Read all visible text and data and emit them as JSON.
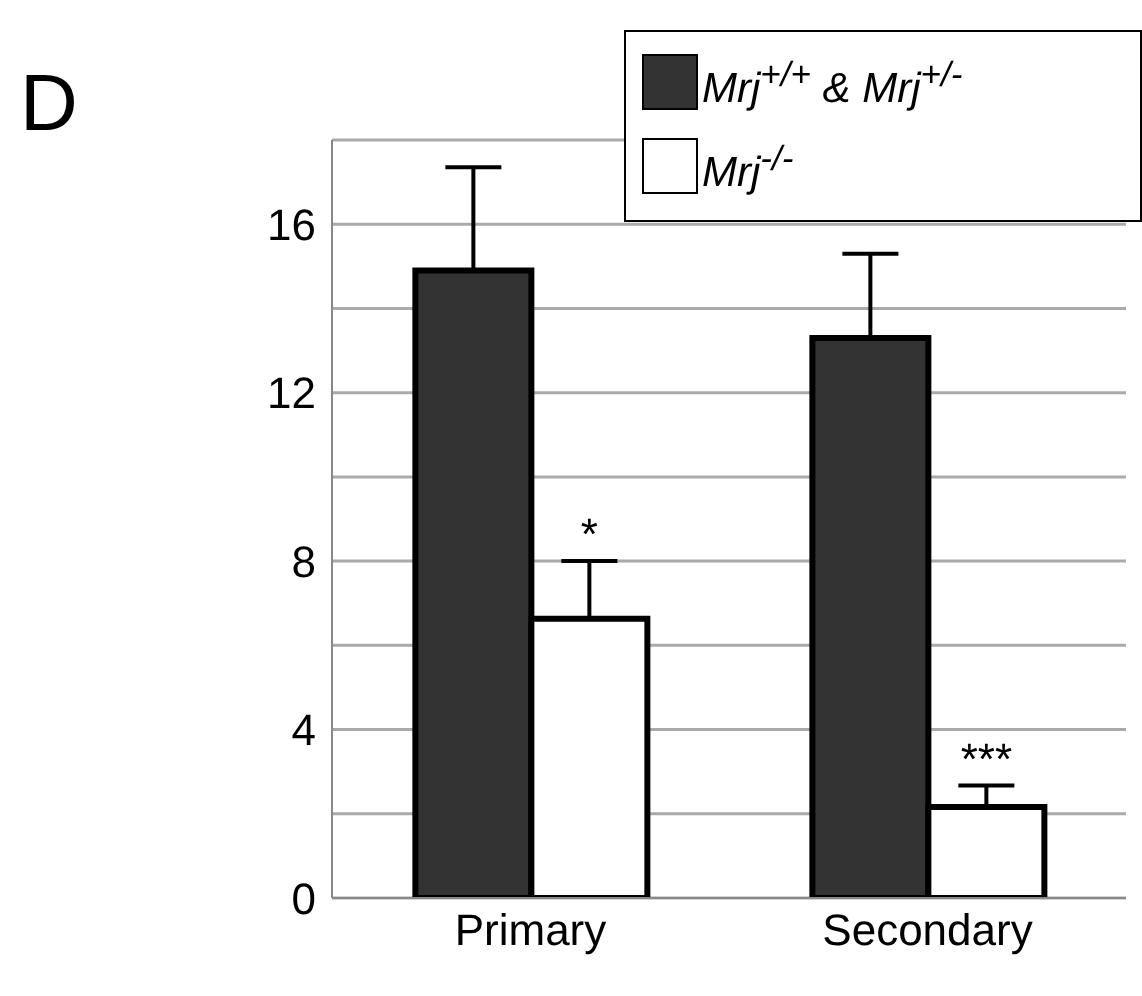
{
  "chart_data": {
    "type": "bar",
    "title": "D",
    "categories": [
      "Primary",
      "Secondary"
    ],
    "series": [
      {
        "name": "Mrj$^{+/+}$ & Mrj$^{+/-}$",
        "color": "#333333",
        "values": [
          14.9,
          13.3
        ],
        "errors": [
          [
            14.9,
            17.35
          ],
          [
            13.3,
            15.3
          ]
        ]
      },
      {
        "name": "Mrj$^{-/-}$",
        "color": "#ffffff",
        "values": [
          6.63,
          2.16
        ],
        "errors": [
          [
            6.63,
            8.0
          ],
          [
            2.16,
            2.67
          ]
        ]
      }
    ],
    "ylim": [
      0,
      18
    ],
    "yticks": [
      0,
      {
        "value": 2,
        "label": null
      },
      4,
      {
        "value": 6,
        "label": null
      },
      8,
      {
        "value": 10,
        "label": null
      },
      12,
      {
        "value": 14,
        "label": null
      },
      16
    ],
    "grid": "y",
    "legend": "top right",
    "annotations": [
      {
        "text": "*",
        "x": "Primary",
        "y": 8.0
      },
      {
        "text": "***",
        "x": "Secondary",
        "y": 2.67
      }
    ]
  }
}
